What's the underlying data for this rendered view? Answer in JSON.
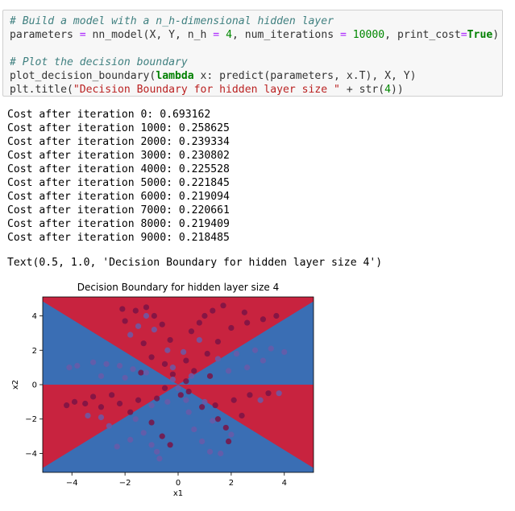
{
  "code": {
    "line1": "# Build a model with a n_h-dimensional hidden layer",
    "line2": {
      "a": "parameters ",
      "b": "=",
      "c": " nn_model(X, Y, n_h ",
      "d": "=",
      "e": " ",
      "f": "4",
      "g": ", num_iterations ",
      "h": "=",
      "i": " ",
      "j": "10000",
      "k": ", print_cost",
      "l": "=",
      "m": "True",
      "n": ")"
    },
    "line3": "# Plot the decision boundary",
    "line4": {
      "a": "plot_decision_boundary(",
      "b": "lambda",
      "c": " x: predict(parameters, x.T), X, Y)"
    },
    "line5": {
      "a": "plt.title(",
      "b": "\"Decision Boundary for hidden layer size \"",
      "c": " + str(",
      "d": "4",
      "e": "))"
    }
  },
  "output": {
    "cost_lines": [
      "Cost after iteration 0: 0.693162",
      "Cost after iteration 1000: 0.258625",
      "Cost after iteration 2000: 0.239334",
      "Cost after iteration 3000: 0.230802",
      "Cost after iteration 4000: 0.225528",
      "Cost after iteration 5000: 0.221845",
      "Cost after iteration 6000: 0.219094",
      "Cost after iteration 7000: 0.220661",
      "Cost after iteration 8000: 0.219409",
      "Cost after iteration 9000: 0.218485"
    ],
    "text_result": "Text(0.5, 1.0, 'Decision Boundary for hidden layer size 4')"
  },
  "chart_data": {
    "type": "scatter",
    "title": "Decision Boundary for hidden layer size 4",
    "xlabel": "x1",
    "ylabel": "x2",
    "xlim": [
      -5.1,
      5.1
    ],
    "ylim": [
      -5.1,
      5.1
    ],
    "xticks": [
      -4,
      -2,
      0,
      2,
      4
    ],
    "yticks": [
      -4,
      -2,
      0,
      2,
      4
    ],
    "xtick_labels": [
      "−4",
      "−2",
      "0",
      "2",
      "4"
    ],
    "ytick_labels": [
      "−4",
      "−2",
      "0",
      "2",
      "4"
    ],
    "regions": {
      "red_color": "#c8233f",
      "blue_color": "#3a6eb4"
    },
    "point_colors": {
      "class0": "#7a1345",
      "class1": "#6a5aa8"
    },
    "series": [
      {
        "class": 0,
        "points": [
          [
            0.5,
            3.1
          ],
          [
            0.8,
            3.6
          ],
          [
            1.0,
            4.0
          ],
          [
            1.3,
            4.3
          ],
          [
            1.7,
            4.6
          ],
          [
            1.5,
            2.5
          ],
          [
            2.0,
            3.3
          ],
          [
            2.6,
            3.6
          ],
          [
            3.2,
            3.8
          ],
          [
            3.7,
            4.0
          ],
          [
            2.5,
            4.2
          ],
          [
            1.1,
            1.8
          ],
          [
            -0.3,
            2.6
          ],
          [
            -0.6,
            3.5
          ],
          [
            -0.9,
            4.0
          ],
          [
            -1.2,
            4.5
          ],
          [
            -1.6,
            4.3
          ],
          [
            -2.0,
            3.7
          ],
          [
            -2.1,
            4.4
          ],
          [
            -1.3,
            2.4
          ],
          [
            -1.0,
            1.6
          ],
          [
            -0.5,
            1.2
          ],
          [
            0.3,
            1.4
          ],
          [
            0.6,
            0.8
          ],
          [
            -0.8,
            -0.8
          ],
          [
            -1.5,
            -0.9
          ],
          [
            -2.2,
            -1.1
          ],
          [
            -2.9,
            -1.3
          ],
          [
            -3.5,
            -1.1
          ],
          [
            -3.9,
            -1.0
          ],
          [
            -4.2,
            -1.2
          ],
          [
            -2.5,
            -0.6
          ],
          [
            -3.2,
            -0.7
          ],
          [
            -1.8,
            -1.6
          ],
          [
            -1.0,
            -2.2
          ],
          [
            -0.6,
            -3.0
          ],
          [
            -0.3,
            -3.5
          ],
          [
            0.9,
            -1.3
          ],
          [
            1.4,
            -1.2
          ],
          [
            2.1,
            -0.9
          ],
          [
            2.7,
            -0.6
          ],
          [
            3.4,
            -0.5
          ],
          [
            1.8,
            -2.5
          ],
          [
            1.9,
            -3.3
          ],
          [
            1.5,
            -2.0
          ],
          [
            0.4,
            -0.4
          ],
          [
            -0.2,
            0.6
          ],
          [
            0.3,
            0.2
          ],
          [
            -0.5,
            -0.2
          ],
          [
            0.1,
            -0.6
          ],
          [
            1.2,
            0.5
          ],
          [
            -1.4,
            0.7
          ],
          [
            2.4,
            -1.8
          ]
        ]
      },
      {
        "class": 1,
        "points": [
          [
            -3.8,
            1.1
          ],
          [
            -3.2,
            1.3
          ],
          [
            -2.7,
            1.2
          ],
          [
            -2.2,
            1.1
          ],
          [
            -1.7,
            0.9
          ],
          [
            -1.2,
            0.7
          ],
          [
            -4.1,
            1.0
          ],
          [
            -2.9,
            0.5
          ],
          [
            -2.0,
            0.4
          ],
          [
            1.5,
            1.5
          ],
          [
            2.2,
            1.8
          ],
          [
            2.9,
            2.0
          ],
          [
            3.5,
            2.1
          ],
          [
            4.0,
            1.9
          ],
          [
            3.2,
            1.4
          ],
          [
            2.6,
            1.0
          ],
          [
            1.9,
            0.8
          ],
          [
            -1.8,
            2.9
          ],
          [
            -1.5,
            3.4
          ],
          [
            -1.2,
            4.0
          ],
          [
            -0.9,
            3.2
          ],
          [
            -0.4,
            2.0
          ],
          [
            -0.2,
            1.0
          ],
          [
            -1.6,
            -2.0
          ],
          [
            -1.3,
            -2.8
          ],
          [
            -1.0,
            -3.5
          ],
          [
            -0.8,
            -3.9
          ],
          [
            -1.8,
            -3.2
          ],
          [
            -2.3,
            -3.6
          ],
          [
            0.4,
            -1.6
          ],
          [
            0.6,
            -2.6
          ],
          [
            0.9,
            -3.3
          ],
          [
            1.2,
            -3.9
          ],
          [
            1.6,
            -4.0
          ],
          [
            1.3,
            -2.1
          ],
          [
            -0.4,
            -1.0
          ],
          [
            0.3,
            -0.9
          ],
          [
            -0.2,
            0.3
          ],
          [
            0.0,
            -0.2
          ],
          [
            0.5,
            0.5
          ],
          [
            3.8,
            -0.5
          ],
          [
            3.1,
            -0.9
          ],
          [
            -3.4,
            -1.8
          ],
          [
            -2.9,
            -1.9
          ],
          [
            -2.6,
            -2.4
          ],
          [
            -0.7,
            -4.3
          ],
          [
            2.0,
            -2.9
          ],
          [
            1.0,
            -1.0
          ],
          [
            -1.0,
            -1.2
          ],
          [
            0.2,
            1.9
          ],
          [
            0.8,
            2.6
          ]
        ]
      }
    ]
  }
}
